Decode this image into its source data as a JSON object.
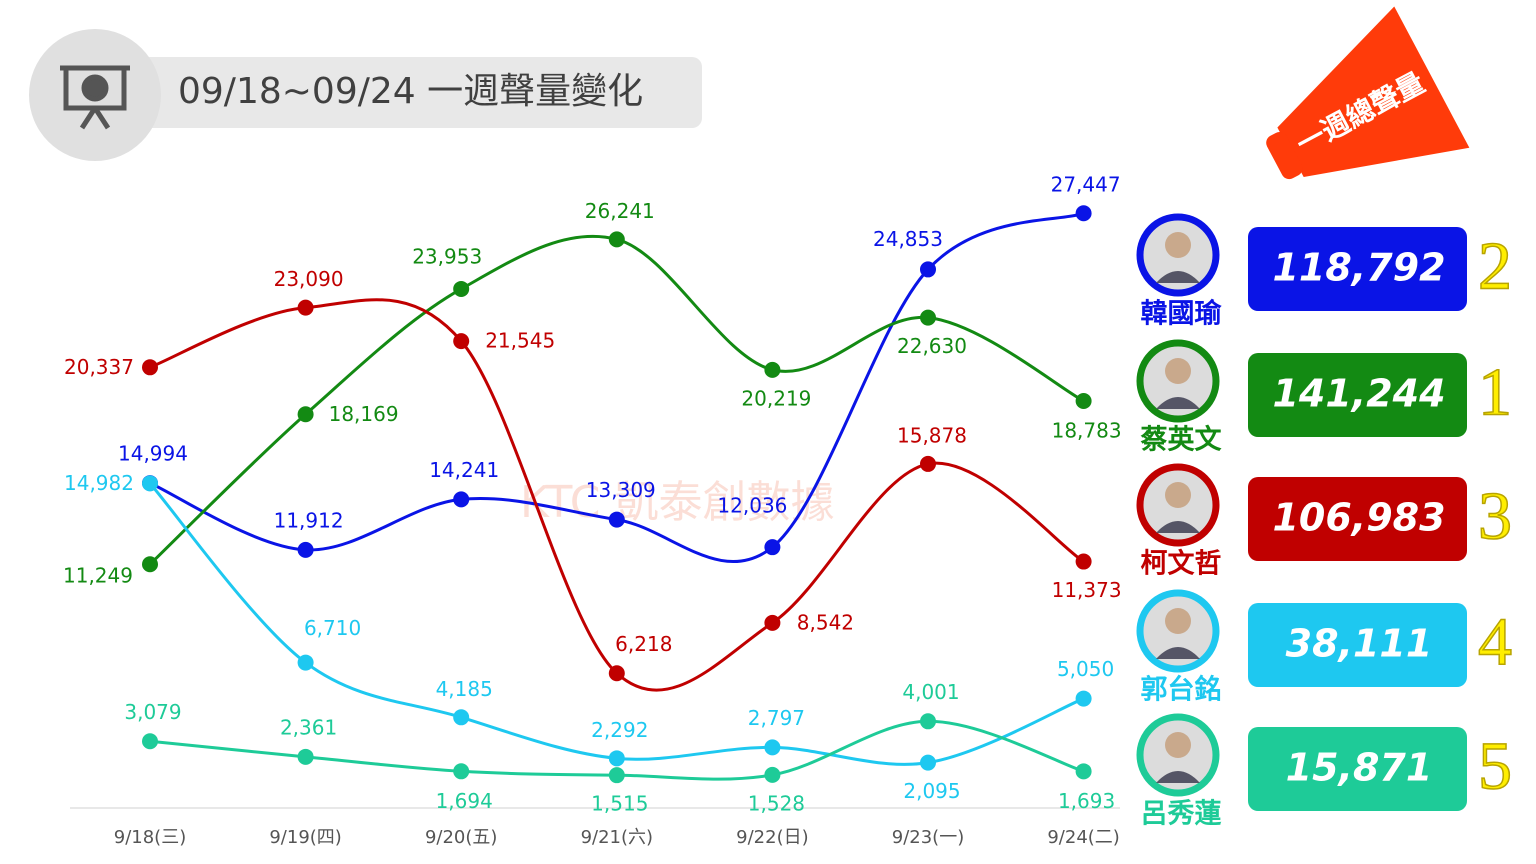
{
  "header": {
    "title": "09/18~09/24 一週聲量變化",
    "badge": "一週總聲量",
    "watermark": "KTC 凱泰創數據"
  },
  "chart_data": {
    "type": "line",
    "categories": [
      "9/18(三)",
      "9/19(四)",
      "9/20(五)",
      "9/21(六)",
      "9/22(日)",
      "9/23(一)",
      "9/24(二)"
    ],
    "series": [
      {
        "name": "韓國瑜",
        "color": "#0a14e6",
        "values": [
          14994,
          11912,
          14241,
          13309,
          12036,
          24853,
          27447
        ],
        "value_labels": [
          "14,994",
          "11,912",
          "14,241",
          "13,309",
          "12,036",
          "24,853",
          "27,447"
        ]
      },
      {
        "name": "蔡英文",
        "color": "#138a13",
        "values": [
          11249,
          18169,
          23953,
          26241,
          20219,
          22630,
          18783
        ],
        "value_labels": [
          "11,249",
          "18,169",
          "23,953",
          "26,241",
          "20,219",
          "22,630",
          "18,783"
        ]
      },
      {
        "name": "柯文哲",
        "color": "#c00000",
        "values": [
          20337,
          23090,
          21545,
          6218,
          8542,
          15878,
          11373
        ],
        "value_labels": [
          "20,337",
          "23,090",
          "21,545",
          "6,218",
          "8,542",
          "15,878",
          "11,373"
        ]
      },
      {
        "name": "郭台銘",
        "color": "#1ec8f0",
        "values": [
          14982,
          6710,
          4185,
          2292,
          2797,
          2095,
          5050
        ],
        "value_labels": [
          "14,982",
          "6,710",
          "4,185",
          "2,292",
          "2,797",
          "2,095",
          "5,050"
        ]
      },
      {
        "name": "呂秀蓮",
        "color": "#1ecb98",
        "values": [
          3079,
          2361,
          1694,
          1515,
          1528,
          4001,
          1693
        ],
        "value_labels": [
          "3,079",
          "2,361",
          "1,694",
          "1,515",
          "1,528",
          "4,001",
          "1,693"
        ]
      }
    ]
  },
  "summary": [
    {
      "total": "118,792",
      "rank": 2
    },
    {
      "total": "141,244",
      "rank": 1
    },
    {
      "total": "106,983",
      "rank": 3
    },
    {
      "total": "38,111",
      "rank": 4
    },
    {
      "total": "15,871",
      "rank": 5
    }
  ]
}
